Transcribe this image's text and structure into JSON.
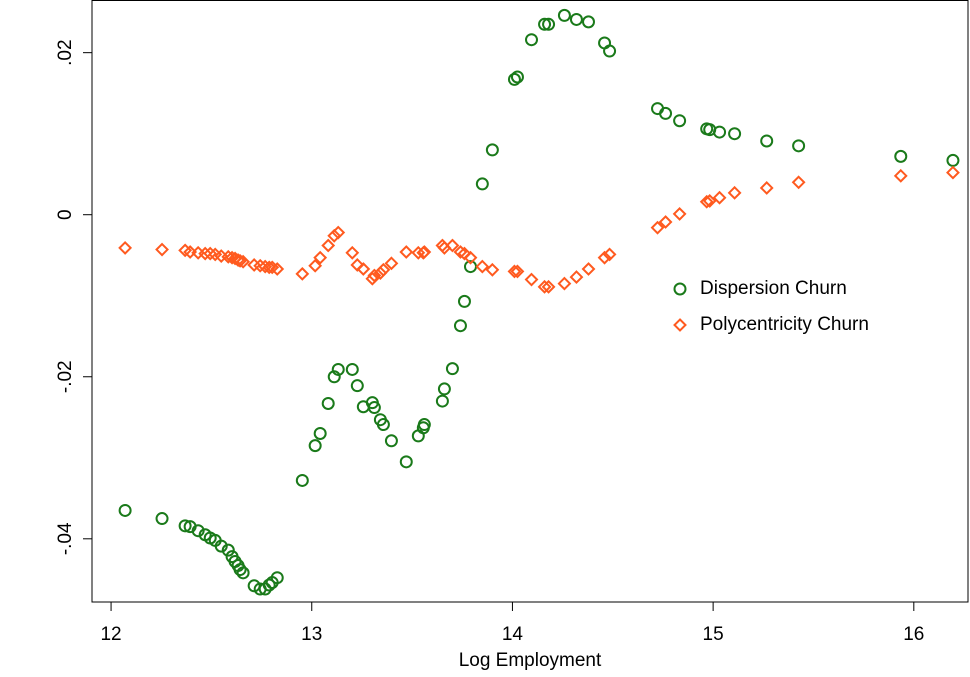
{
  "chart_data": {
    "type": "scatter",
    "x_label": "Log Employment",
    "xlim": [
      11.905,
      16.27
    ],
    "xticks": [
      12,
      13,
      14,
      15,
      16
    ],
    "ylim": [
      -0.0478,
      0.0265
    ],
    "yticks": [
      {
        "value": -0.04,
        "label": "-.04"
      },
      {
        "value": -0.02,
        "label": "-.02"
      },
      0,
      {
        "value": 0.02,
        "label": ".02"
      }
    ],
    "legend": "right",
    "x": [
      12.07,
      12.254,
      12.369,
      12.394,
      12.434,
      12.469,
      12.494,
      12.519,
      12.549,
      12.584,
      12.603,
      12.618,
      12.633,
      12.643,
      12.658,
      12.713,
      12.743,
      12.768,
      12.788,
      12.803,
      12.828,
      12.953,
      13.017,
      13.042,
      13.082,
      13.112,
      13.132,
      13.202,
      13.227,
      13.257,
      13.302,
      13.312,
      13.342,
      13.357,
      13.397,
      13.471,
      13.531,
      13.556,
      13.561,
      13.651,
      13.661,
      13.701,
      13.741,
      13.761,
      13.791,
      13.85,
      13.9,
      14.01,
      14.025,
      14.095,
      14.16,
      14.18,
      14.259,
      14.319,
      14.379,
      14.459,
      14.484,
      14.723,
      14.763,
      14.833,
      14.968,
      14.983,
      15.032,
      15.107,
      15.267,
      15.426,
      15.935,
      16.195
    ],
    "series": [
      {
        "name": "Dispersion Churn",
        "color": "#1a7a1a",
        "marker": "circle",
        "values": [
          -0.0365,
          -0.0375,
          -0.0384,
          -0.0385,
          -0.039,
          -0.0395,
          -0.0399,
          -0.0402,
          -0.0409,
          -0.0414,
          -0.0422,
          -0.0428,
          -0.0433,
          -0.0438,
          -0.0442,
          -0.0458,
          -0.0462,
          -0.0462,
          -0.0457,
          -0.0454,
          -0.0448,
          -0.0328,
          -0.0285,
          -0.027,
          -0.0233,
          -0.02,
          -0.0191,
          -0.0191,
          -0.0211,
          -0.0237,
          -0.0232,
          -0.0238,
          -0.0253,
          -0.0259,
          -0.0279,
          -0.0305,
          -0.0273,
          -0.0263,
          -0.0259,
          -0.023,
          -0.0215,
          -0.019,
          -0.0137,
          -0.0107,
          -0.0064,
          0.0038,
          0.008,
          0.0167,
          0.017,
          0.0216,
          0.0235,
          0.0235,
          0.0246,
          0.0241,
          0.0238,
          0.0212,
          0.0202,
          0.0131,
          0.0125,
          0.0116,
          0.0106,
          0.0105,
          0.0102,
          0.01,
          0.0091,
          0.0085,
          0.0072,
          0.0067
        ]
      },
      {
        "name": "Polycentricity Churn",
        "color": "#ff5a1f",
        "marker": "diamond",
        "values": [
          -0.0041,
          -0.0043,
          -0.0044,
          -0.0046,
          -0.0047,
          -0.0048,
          -0.0048,
          -0.0049,
          -0.0051,
          -0.0052,
          -0.0053,
          -0.0054,
          -0.0056,
          -0.0057,
          -0.0058,
          -0.0062,
          -0.0063,
          -0.0064,
          -0.0065,
          -0.0065,
          -0.0067,
          -0.0073,
          -0.0063,
          -0.0053,
          -0.0038,
          -0.0026,
          -0.0022,
          -0.0047,
          -0.0062,
          -0.0067,
          -0.0079,
          -0.0075,
          -0.0072,
          -0.0068,
          -0.006,
          -0.0046,
          -0.0047,
          -0.0047,
          -0.0046,
          -0.0038,
          -0.0041,
          -0.0038,
          -0.0046,
          -0.0048,
          -0.0053,
          -0.0064,
          -0.0068,
          -0.007,
          -0.007,
          -0.008,
          -0.0089,
          -0.0089,
          -0.0085,
          -0.0077,
          -0.0067,
          -0.0053,
          -0.0049,
          -0.0016,
          -0.0009,
          0.0001,
          0.0016,
          0.0017,
          0.0021,
          0.0027,
          0.0033,
          0.004,
          0.0048,
          0.0052
        ]
      }
    ]
  }
}
